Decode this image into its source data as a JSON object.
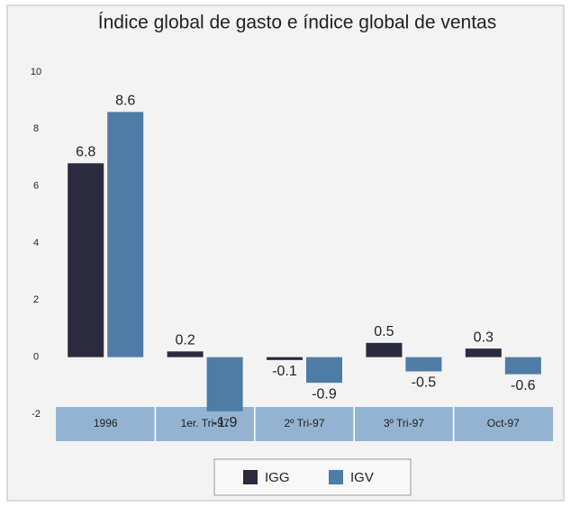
{
  "chart_data": {
    "type": "bar",
    "title": "Índice global de gasto e índice global de ventas",
    "categories": [
      "1996",
      "1er. Tri-97",
      "2º Tri-97",
      "3º Tri-97",
      "Oct-97"
    ],
    "series": [
      {
        "name": "IGG",
        "color": "#2b2a3e",
        "values": [
          6.8,
          0.2,
          -0.1,
          0.5,
          0.3
        ]
      },
      {
        "name": "IGV",
        "color": "#4e7ca6",
        "values": [
          8.6,
          -1.9,
          -0.9,
          -0.5,
          -0.6
        ]
      }
    ],
    "ylim": [
      -2,
      10
    ],
    "yticks": [
      -2,
      0,
      2,
      4,
      6,
      8,
      10
    ],
    "grid": false,
    "legend": "bottom"
  }
}
